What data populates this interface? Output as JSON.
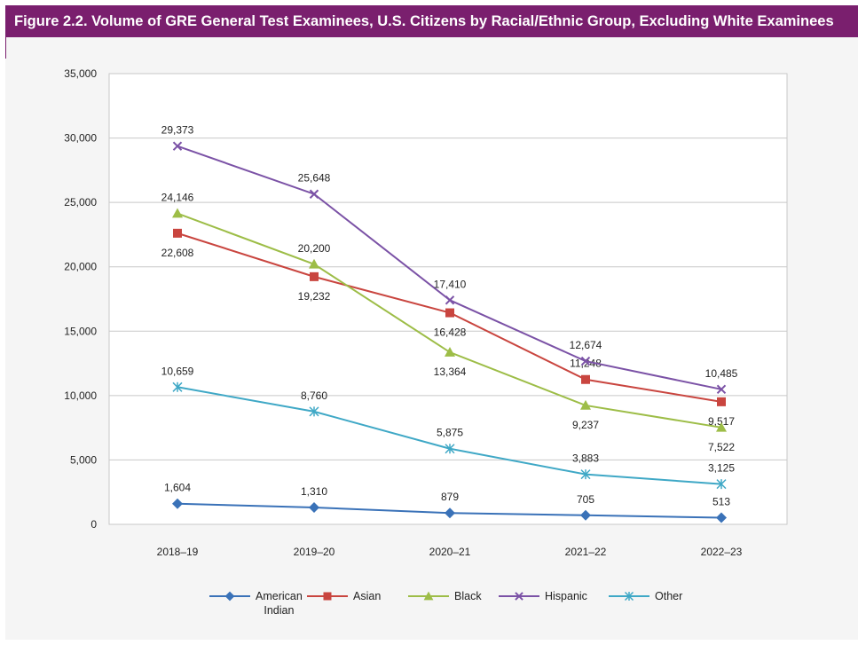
{
  "header": {
    "title": "Figure 2.2. Volume of GRE General Test Examinees, U.S. Citizens by Racial/Ethnic Group, Excluding White Examinees"
  },
  "chart_data": {
    "type": "line",
    "title": "Figure 2.2. Volume of GRE General Test Examinees, U.S. Citizens by Racial/Ethnic Group, Excluding White Examinees",
    "xlabel": "",
    "ylabel": "",
    "categories": [
      "2018–19",
      "2019–20",
      "2020–21",
      "2021–22",
      "2022–23"
    ],
    "ylim": [
      0,
      35000
    ],
    "yticks": [
      0,
      5000,
      10000,
      15000,
      20000,
      25000,
      30000,
      35000
    ],
    "ytick_labels": [
      "0",
      "5,000",
      "10,000",
      "15,000",
      "20,000",
      "25,000",
      "30,000",
      "35,000"
    ],
    "grid": true,
    "legend_position": "bottom",
    "series": [
      {
        "name": "American Indian",
        "color": "#3a72b8",
        "marker": "diamond",
        "values": [
          1604,
          1310,
          879,
          705,
          513
        ],
        "labels": [
          "1,604",
          "1,310",
          "879",
          "705",
          "513"
        ],
        "label_side": [
          "above",
          "above",
          "above",
          "above",
          "above"
        ]
      },
      {
        "name": "Asian",
        "color": "#c9453f",
        "marker": "square",
        "values": [
          22608,
          19232,
          16428,
          11248,
          9517
        ],
        "labels": [
          "22,608",
          "19,232",
          "16,428",
          "11,248",
          "9,517"
        ],
        "label_side": [
          "below",
          "below",
          "below",
          "above",
          "below"
        ]
      },
      {
        "name": "Black",
        "color": "#9dbd47",
        "marker": "triangle",
        "values": [
          24146,
          20200,
          13364,
          9237,
          7522
        ],
        "labels": [
          "24,146",
          "20,200",
          "13,364",
          "9,237",
          "7,522"
        ],
        "label_side": [
          "above",
          "above",
          "below",
          "below",
          "below"
        ]
      },
      {
        "name": "Hispanic",
        "color": "#7b52a6",
        "marker": "x",
        "values": [
          29373,
          25648,
          17410,
          12674,
          10485
        ],
        "labels": [
          "29,373",
          "25,648",
          "17,410",
          "12,674",
          "10,485"
        ],
        "label_side": [
          "above",
          "above",
          "above",
          "above",
          "above"
        ]
      },
      {
        "name": "Other",
        "color": "#3fa8c6",
        "marker": "asterisk",
        "values": [
          10659,
          8760,
          5875,
          3883,
          3125
        ],
        "labels": [
          "10,659",
          "8,760",
          "5,875",
          "3,883",
          "3,125"
        ],
        "label_side": [
          "above",
          "above",
          "above",
          "above",
          "above"
        ]
      }
    ]
  },
  "legend": {
    "items": [
      {
        "label": "American\nIndian",
        "series_index": 0,
        "icon": "diamond-marker-icon"
      },
      {
        "label": "Asian",
        "series_index": 1,
        "icon": "square-marker-icon"
      },
      {
        "label": "Black",
        "series_index": 2,
        "icon": "triangle-marker-icon"
      },
      {
        "label": "Hispanic",
        "series_index": 3,
        "icon": "x-marker-icon"
      },
      {
        "label": "Other",
        "series_index": 4,
        "icon": "asterisk-marker-icon"
      }
    ]
  }
}
